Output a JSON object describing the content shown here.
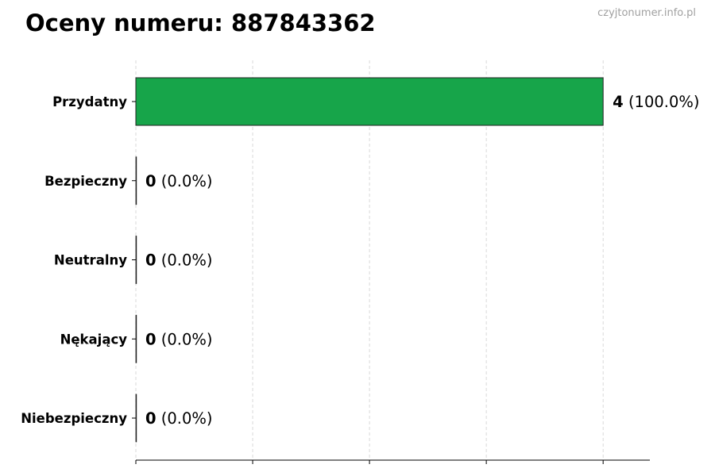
{
  "chart_data": {
    "type": "bar",
    "orientation": "horizontal",
    "title": "Oceny numeru: 887843362",
    "watermark": "czyjtonumer.info.pl",
    "categories": [
      "Przydatny",
      "Bezpieczny",
      "Neutralny",
      "Nękający",
      "Niebezpieczny"
    ],
    "values": [
      4,
      0,
      0,
      0,
      0
    ],
    "percentages": [
      "100.0%",
      "0.0%",
      "0.0%",
      "0.0%",
      "0.0%"
    ],
    "colors": [
      "#17a54a",
      "#17a54a",
      "#17a54a",
      "#17a54a",
      "#17a54a"
    ],
    "xlim": [
      0,
      4.4
    ],
    "xticks": [
      0,
      1,
      2,
      3,
      4
    ],
    "xtick_labels_shown": false,
    "grid": "x, dashed",
    "xlabel": "",
    "ylabel": ""
  }
}
